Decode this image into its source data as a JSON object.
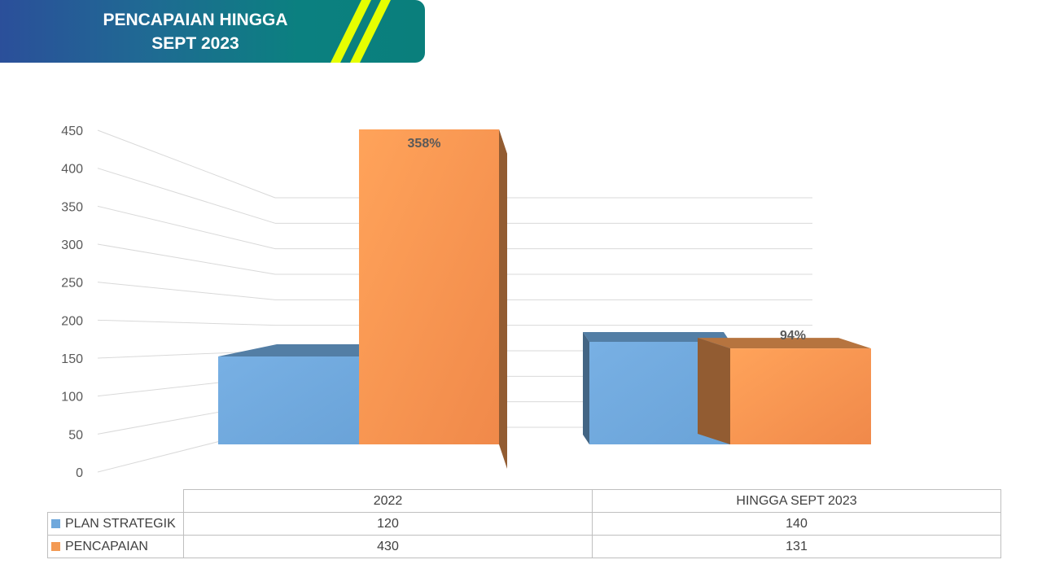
{
  "banner": {
    "title_line1": "PENCAPAIAN HINGGA",
    "title_line2": "SEPT 2023",
    "stripe_color": "#e6ff00"
  },
  "chart_data": {
    "type": "bar",
    "style": "3d-clustered",
    "categories": [
      "2022",
      "HINGGA SEPT 2023"
    ],
    "series": [
      {
        "name": "PLAN STRATEGIK",
        "values": [
          120,
          140
        ],
        "color": "#6fa8dc"
      },
      {
        "name": "PENCAPAIAN",
        "values": [
          430,
          131
        ],
        "color": "#f39a54"
      }
    ],
    "data_labels": [
      {
        "category": "2022",
        "series": "PENCAPAIAN",
        "text": "358%"
      },
      {
        "category": "HINGGA SEPT 2023",
        "series": "PENCAPAIAN",
        "text": "94%"
      }
    ],
    "y_ticks": [
      0,
      50,
      100,
      150,
      200,
      250,
      300,
      350,
      400,
      450
    ],
    "ylim": [
      0,
      450
    ],
    "grid": true,
    "legend": "data-table-below"
  },
  "table": {
    "header": [
      "2022",
      "HINGGA SEPT 2023"
    ],
    "rows": [
      {
        "label": "PLAN STRATEGIK",
        "values": [
          "120",
          "140"
        ],
        "color": "#6fa8dc"
      },
      {
        "label": "PENCAPAIAN",
        "values": [
          "430",
          "131"
        ],
        "color": "#f39a54"
      }
    ]
  }
}
